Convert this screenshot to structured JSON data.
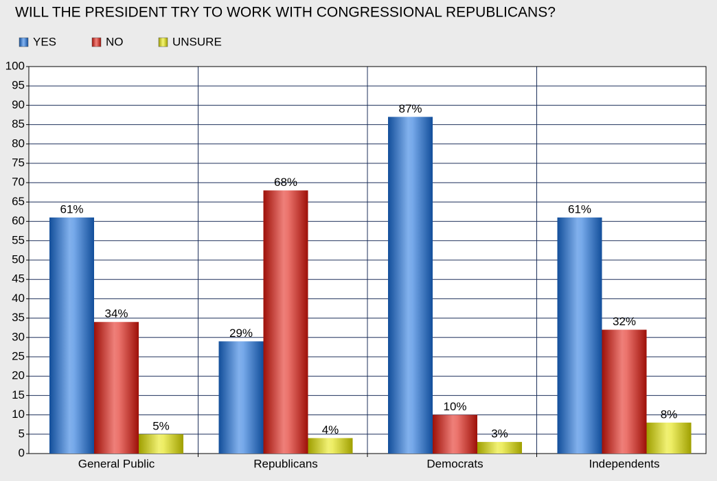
{
  "chart_data": {
    "type": "bar",
    "title": "WILL THE PRESIDENT TRY TO WORK WITH CONGRESSIONAL REPUBLICANS?",
    "categories": [
      "General Public",
      "Republicans",
      "Democrats",
      "Independents"
    ],
    "series": [
      {
        "name": "YES",
        "color": "#1a70dc",
        "values": [
          61,
          29,
          87,
          61
        ],
        "value_labels": [
          "61%",
          "29%",
          "87%",
          "61%"
        ]
      },
      {
        "name": "NO",
        "color": "#e0170c",
        "values": [
          34,
          68,
          10,
          32
        ],
        "value_labels": [
          "34%",
          "68%",
          "10%",
          "32%"
        ]
      },
      {
        "name": "UNSURE",
        "color": "#e3e300",
        "values": [
          5,
          4,
          3,
          8
        ],
        "value_labels": [
          "5%",
          "4%",
          "3%",
          "8%"
        ]
      }
    ],
    "ylim": [
      0,
      100
    ],
    "yticks": [
      0,
      5,
      10,
      15,
      20,
      25,
      30,
      35,
      40,
      45,
      50,
      55,
      60,
      65,
      70,
      75,
      80,
      85,
      90,
      95,
      100
    ],
    "grid": true,
    "legend": "top-left"
  }
}
